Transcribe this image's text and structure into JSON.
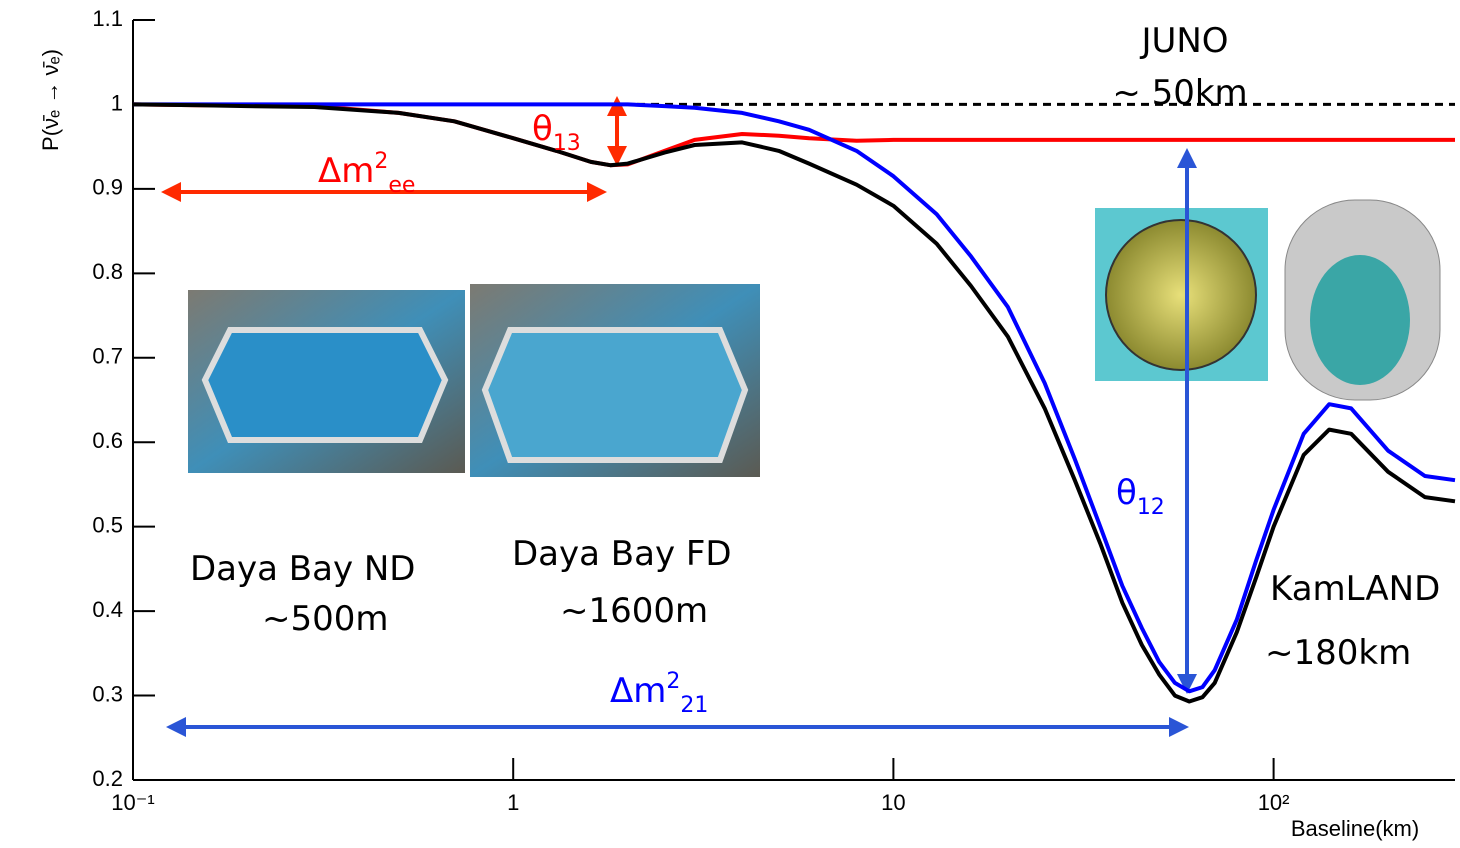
{
  "chart_data": {
    "type": "line",
    "log_x": true,
    "xlabel": "Baseline(km)",
    "ylabel": "P(ν̄ₑ → ν̄ₑ)",
    "xlim": [
      0.1,
      300
    ],
    "ylim": [
      0.2,
      1.1
    ],
    "xticks": [
      {
        "value": 0.1,
        "label": "10⁻¹"
      },
      1,
      10,
      {
        "value": 100,
        "label": "10²"
      }
    ],
    "yticks": [
      0.2,
      0.3,
      0.4,
      0.5,
      0.6,
      0.7,
      0.8,
      0.9,
      1,
      1.1
    ],
    "x": [
      0.1,
      0.15,
      0.2,
      0.3,
      0.5,
      0.7,
      1,
      1.3,
      1.6,
      1.8,
      2,
      2.5,
      3,
      4,
      5,
      6,
      8,
      10,
      13,
      16,
      20,
      25,
      30,
      35,
      40,
      45,
      50,
      55,
      60,
      65,
      70,
      80,
      90,
      100,
      120,
      140,
      160,
      200,
      250,
      300
    ],
    "series": [
      {
        "color": "#000000",
        "dash": true,
        "values": [
          1,
          1,
          1,
          1,
          1,
          1,
          1,
          1,
          1,
          1,
          1,
          1,
          1,
          1,
          1,
          1,
          1,
          1,
          1,
          1,
          1,
          1,
          1,
          1,
          1,
          1,
          1,
          1,
          1,
          1,
          1,
          1,
          1,
          1,
          1,
          1,
          1,
          1,
          1,
          1
        ]
      },
      {
        "color": "#ff0000",
        "values": [
          1,
          0.999,
          0.999,
          0.998,
          0.99,
          0.98,
          0.96,
          0.945,
          0.932,
          0.928,
          0.929,
          0.945,
          0.958,
          0.965,
          0.963,
          0.96,
          0.957,
          0.958,
          0.958,
          0.958,
          0.958,
          0.958,
          0.958,
          0.958,
          0.958,
          0.958,
          0.958,
          0.958,
          0.958,
          0.958,
          0.958,
          0.958,
          0.958,
          0.958,
          0.958,
          0.958,
          0.958,
          0.958,
          0.958,
          0.958
        ]
      },
      {
        "color": "#0000ff",
        "values": [
          1,
          1,
          1,
          1,
          1,
          1,
          1,
          1,
          1,
          1,
          1,
          0.998,
          0.996,
          0.99,
          0.98,
          0.97,
          0.945,
          0.915,
          0.87,
          0.82,
          0.76,
          0.67,
          0.58,
          0.5,
          0.43,
          0.38,
          0.34,
          0.315,
          0.305,
          0.31,
          0.33,
          0.39,
          0.46,
          0.52,
          0.61,
          0.645,
          0.64,
          0.59,
          0.56,
          0.555
        ]
      },
      {
        "color": "#000000",
        "values": [
          1,
          0.999,
          0.998,
          0.997,
          0.99,
          0.98,
          0.96,
          0.945,
          0.932,
          0.928,
          0.93,
          0.943,
          0.952,
          0.955,
          0.945,
          0.93,
          0.905,
          0.88,
          0.835,
          0.785,
          0.725,
          0.64,
          0.555,
          0.48,
          0.41,
          0.36,
          0.325,
          0.3,
          0.293,
          0.298,
          0.315,
          0.375,
          0.44,
          0.5,
          0.585,
          0.615,
          0.61,
          0.565,
          0.535,
          0.53
        ]
      }
    ],
    "annotations": [
      {
        "text": "JUNO",
        "color": "#000000"
      },
      {
        "text": "~ 50km",
        "color": "#000000"
      },
      {
        "text": "θ",
        "sub": "13",
        "color": "#ff0000"
      },
      {
        "text": "Δm",
        "sup": "2",
        "sub": "ee",
        "color": "#ff0000"
      },
      {
        "text": "Daya Bay ND",
        "color": "#000000"
      },
      {
        "text": "~500m",
        "color": "#000000"
      },
      {
        "text": "Daya Bay FD",
        "color": "#000000"
      },
      {
        "text": "~1600m",
        "color": "#000000"
      },
      {
        "text": "KamLAND",
        "color": "#000000"
      },
      {
        "text": "~180km",
        "color": "#000000"
      },
      {
        "text": "θ",
        "sub": "12",
        "color": "#0000ff"
      },
      {
        "text": "Δm",
        "sup": "2",
        "sub": "21",
        "color": "#0000ff"
      }
    ]
  }
}
